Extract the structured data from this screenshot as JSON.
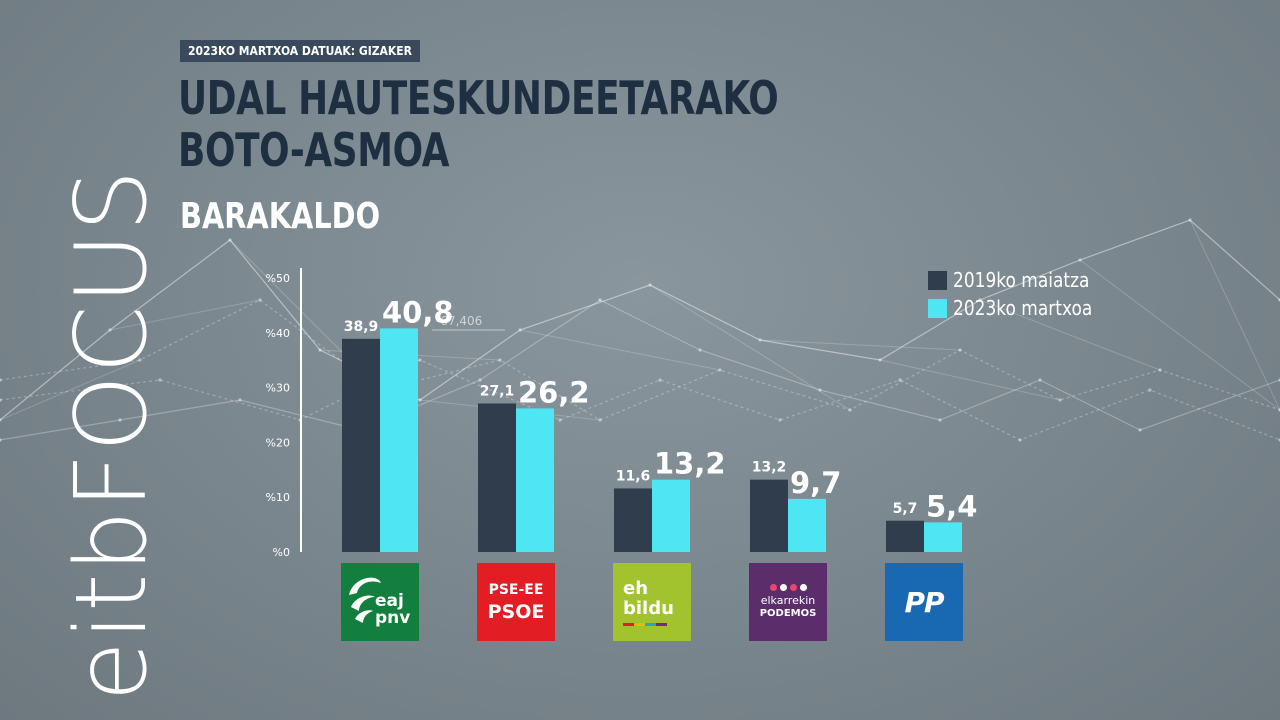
{
  "header": {
    "tagline": "2023KO MARTXOA   DATUAK: GIZAKER",
    "title_line1": "UDAL HAUTESKUNDEETARAKO",
    "title_line2": "BOTO-ASMOA",
    "subtitle": "BARAKALDO"
  },
  "brand": {
    "name": "eitbFOCUS"
  },
  "background": {
    "stray_label": "-67,406"
  },
  "legend": {
    "position": "top-right",
    "items": [
      {
        "label": "2019ko maiatza",
        "color": "#2f3d4c"
      },
      {
        "label": "2023ko martxoa",
        "color": "#4ee6f2"
      }
    ]
  },
  "parties": [
    {
      "id": "pnv",
      "icon": "eaj-pnv-logo",
      "color": "#127f3e",
      "text1": "eaj",
      "text2": "pnv"
    },
    {
      "id": "psoe",
      "icon": "pse-ee-psoe-logo",
      "color": "#e21d23",
      "text1": "PSE-EE",
      "text2": "PSOE"
    },
    {
      "id": "bildu",
      "icon": "eh-bildu-logo",
      "color": "#a3c32e",
      "text1": "eh",
      "text2": "bildu"
    },
    {
      "id": "podemos",
      "icon": "elkarrekin-podemos-logo",
      "color": "#5b2e6b",
      "text1": "elkarrekin",
      "text2": "PODEMOS"
    },
    {
      "id": "pp",
      "icon": "pp-logo",
      "color": "#1869b1",
      "text1": "PP",
      "text2": ""
    }
  ],
  "chart_data": {
    "type": "bar",
    "categories": [
      "EAJ-PNV",
      "PSE-EE PSOE",
      "EH Bildu",
      "Elkarrekin Podemos",
      "PP"
    ],
    "series": [
      {
        "name": "2019ko maiatza",
        "values": [
          38.9,
          27.1,
          11.6,
          13.2,
          5.7
        ],
        "labels": [
          "38,9",
          "27,1",
          "11,6",
          "13,2",
          "5,7"
        ],
        "color": "#2f3d4c"
      },
      {
        "name": "2023ko martxoa",
        "values": [
          40.8,
          26.2,
          13.2,
          9.7,
          5.4
        ],
        "labels": [
          "40,8",
          "26,2",
          "13,2",
          "9,7",
          "5,4"
        ],
        "color": "#4ee6f2"
      }
    ],
    "y_ticks": [
      {
        "value": 0,
        "label": "%0"
      },
      {
        "value": 10,
        "label": "%10"
      },
      {
        "value": 20,
        "label": "%20"
      },
      {
        "value": 30,
        "label": "%30"
      },
      {
        "value": 40,
        "label": "%40"
      },
      {
        "value": 50,
        "label": "%50"
      }
    ],
    "ylim": [
      0,
      50
    ],
    "grid": false
  }
}
